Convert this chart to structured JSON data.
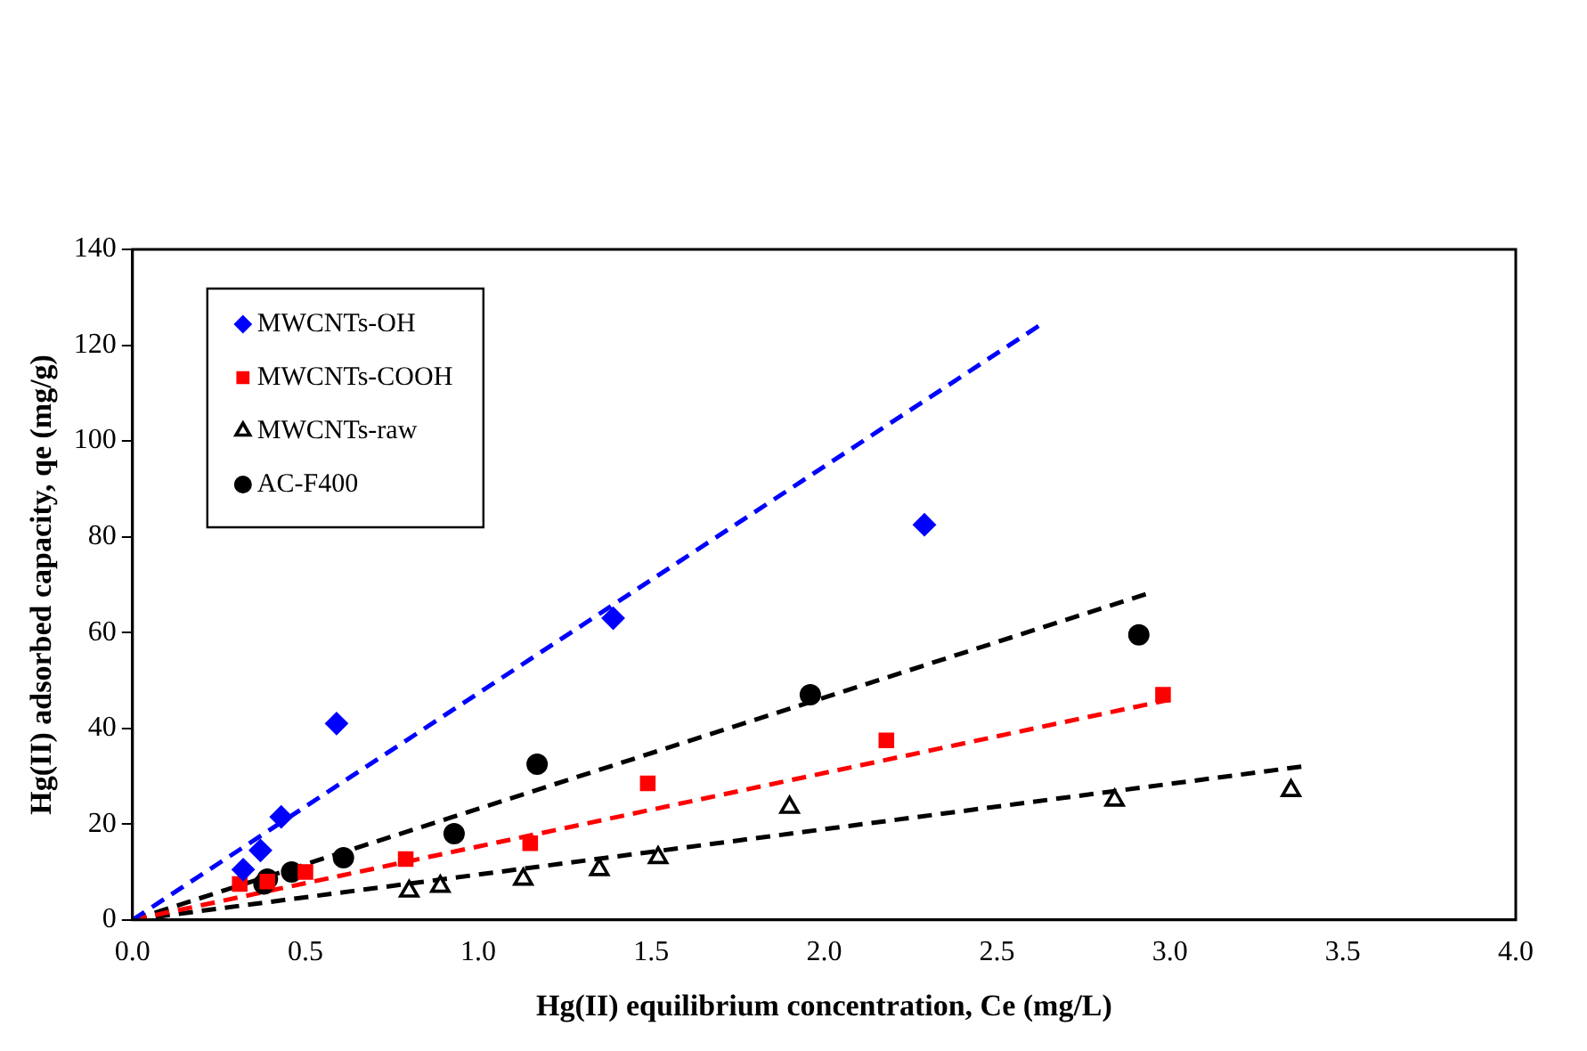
{
  "chart_data": {
    "type": "scatter",
    "xlabel": "Hg(II) equilibrium concentration, Ce (mg/L)",
    "ylabel": "Hg(II) adsorbed capacity, qe (mg/g)",
    "xlim": [
      0,
      4
    ],
    "xticks": [
      {
        "value": 0,
        "label": "0.0"
      },
      {
        "value": 0.5,
        "label": "0.5"
      },
      {
        "value": 1,
        "label": "1.0"
      },
      {
        "value": 1.5,
        "label": "1.5"
      },
      {
        "value": 2,
        "label": "2.0"
      },
      {
        "value": 2.5,
        "label": "2.5"
      },
      {
        "value": 3,
        "label": "3.0"
      },
      {
        "value": 3.5,
        "label": "3.5"
      },
      {
        "value": 4,
        "label": "4.0"
      }
    ],
    "ylim": [
      0,
      140
    ],
    "yticks": [
      0,
      20,
      40,
      60,
      80,
      100,
      120,
      140
    ],
    "grid": false,
    "legend": "top left",
    "series": [
      {
        "name": "MWCNTs-OH",
        "color": "#0000ff",
        "marker": "diamond",
        "x": [
          0.32,
          0.37,
          0.43,
          0.59,
          1.39,
          2.29
        ],
        "values": [
          10.5,
          14.5,
          21.5,
          41,
          63,
          82.5
        ]
      },
      {
        "name": "MWCNTs-COOH",
        "color": "#ff0000",
        "marker": "square",
        "x": [
          0.31,
          0.39,
          0.5,
          0.79,
          1.15,
          1.49,
          2.18,
          2.98
        ],
        "values": [
          7.5,
          8,
          10,
          12.7,
          16,
          28.5,
          37.5,
          47
        ]
      },
      {
        "name": "MWCNTs-raw",
        "color": "#000000",
        "marker": "triangle",
        "x": [
          0.8,
          0.89,
          1.13,
          1.35,
          1.52,
          1.9,
          2.84,
          3.35
        ],
        "values": [
          6,
          7,
          8.5,
          10.5,
          13,
          23.5,
          25,
          27
        ]
      },
      {
        "name": "AC-F400",
        "color": "#000000",
        "marker": "circle",
        "x": [
          0.38,
          0.39,
          0.46,
          0.61,
          0.93,
          1.17,
          1.96,
          2.91
        ],
        "values": [
          7.5,
          8.5,
          10,
          13,
          18,
          32.5,
          47,
          59.5
        ]
      },
      {
        "type": "line",
        "color": "#0000ff",
        "marker": "none",
        "line_style": "dashed",
        "x": [
          0,
          2.62
        ],
        "values": [
          0,
          124
        ]
      },
      {
        "type": "line",
        "color": "#ff0000",
        "marker": "none",
        "line_style": "dashed",
        "x": [
          0,
          3
        ],
        "values": [
          0,
          46
        ]
      },
      {
        "type": "line",
        "color": "#000000",
        "marker": "none",
        "line_style": "dashed",
        "x": [
          0,
          3.38
        ],
        "values": [
          0,
          32
        ]
      },
      {
        "type": "line",
        "color": "#000000",
        "marker": "none",
        "line_style": "dashed",
        "x": [
          0,
          2.93
        ],
        "values": [
          0,
          68
        ]
      }
    ]
  }
}
